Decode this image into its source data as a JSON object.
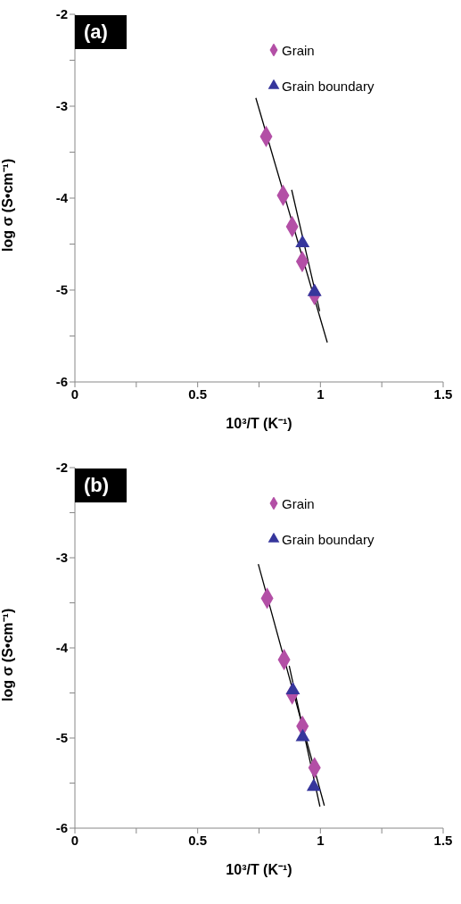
{
  "chart_data": [
    {
      "type": "scatter",
      "annotations": [
        "(a)"
      ],
      "xlabel": "10³/T (K⁻¹)",
      "ylabel": "log σ (S•cm⁻¹)",
      "xlim": [
        0,
        1.5
      ],
      "xticks": [
        0,
        {
          "value": 0.25,
          "label": null
        },
        0.5,
        {
          "value": 0.75,
          "label": null
        },
        1,
        {
          "value": 1.25,
          "label": null
        },
        1.5
      ],
      "ylim": [
        -6,
        -2
      ],
      "yticks": [
        -6,
        {
          "value": -5.5,
          "label": null
        },
        -5,
        {
          "value": -4.5,
          "label": null
        },
        -4,
        {
          "value": -3.5,
          "label": null
        },
        -3,
        {
          "value": -2.5,
          "label": null
        },
        -2
      ],
      "legend": "top right",
      "grid": false,
      "series": [
        {
          "name": "Grain",
          "color": "#b34fa6",
          "marker": "diamond",
          "x": [
            0.779,
            0.848,
            0.885,
            0.926,
            0.976
          ],
          "values": [
            -3.33,
            -3.97,
            -4.31,
            -4.69,
            -5.05
          ]
        },
        {
          "name": "Grain boundary",
          "color": "#36369c",
          "marker": "triangle",
          "x": [
            0.927,
            0.976
          ],
          "values": [
            -4.49,
            -5.02
          ]
        },
        {
          "type": "line",
          "color": "#000000",
          "marker": "none",
          "x": [
            0.737,
            1.028
          ],
          "values": [
            -2.91,
            -5.57
          ]
        },
        {
          "type": "line",
          "color": "#000000",
          "marker": "none",
          "x": [
            0.883,
            0.997
          ],
          "values": [
            -3.91,
            -5.23
          ]
        }
      ]
    },
    {
      "type": "scatter",
      "annotations": [
        "(b)"
      ],
      "xlabel": "10³/T (K⁻¹)",
      "ylabel": "log σ (S•cm⁻¹)",
      "xlim": [
        0,
        1.5
      ],
      "xticks": [
        0,
        {
          "value": 0.25,
          "label": null
        },
        0.5,
        {
          "value": 0.75,
          "label": null
        },
        1,
        {
          "value": 1.25,
          "label": null
        },
        1.5
      ],
      "ylim": [
        -6,
        -2
      ],
      "yticks": [
        -6,
        {
          "value": -5.5,
          "label": null
        },
        -5,
        {
          "value": -4.5,
          "label": null
        },
        -4,
        {
          "value": -3.5,
          "label": null
        },
        -3,
        {
          "value": -2.5,
          "label": null
        },
        -2
      ],
      "legend": "top right",
      "grid": false,
      "series": [
        {
          "name": "Grain",
          "color": "#b34fa6",
          "marker": "diamond",
          "x": [
            0.783,
            0.852,
            0.885,
            0.927,
            0.976
          ],
          "values": [
            -3.45,
            -4.13,
            -4.51,
            -4.87,
            -5.33
          ]
        },
        {
          "name": "Grain boundary",
          "color": "#36369c",
          "marker": "triangle",
          "x": [
            0.888,
            0.928,
            0.973
          ],
          "values": [
            -4.47,
            -4.99,
            -5.54
          ]
        },
        {
          "type": "line",
          "color": "#000000",
          "marker": "none",
          "x": [
            0.747,
            1.016
          ],
          "values": [
            -3.07,
            -5.75
          ]
        },
        {
          "type": "line",
          "color": "#000000",
          "marker": "none",
          "x": [
            0.873,
            0.998
          ],
          "values": [
            -4.2,
            -5.76
          ]
        }
      ]
    }
  ]
}
